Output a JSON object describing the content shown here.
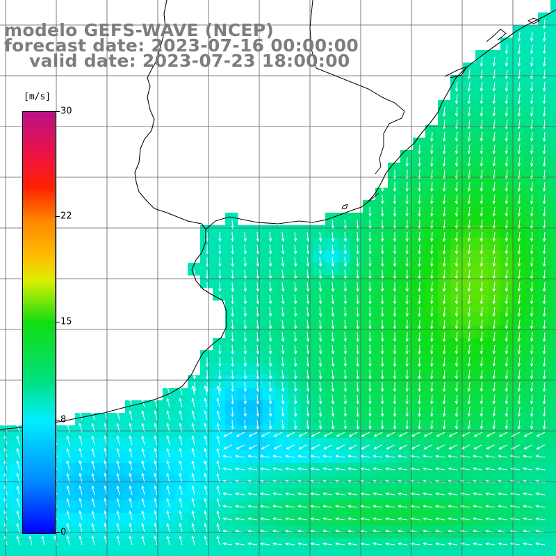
{
  "title": {
    "line1": "modelo GEFS-WAVE (NCEP)",
    "line2": "forecast date: 2023-07-16 00:00:00",
    "line3": "valid date: 2023-07-23 18:00:00"
  },
  "colorbar": {
    "unit": "[m/s]",
    "ticks": [
      "0",
      "8",
      "15",
      "22",
      "30"
    ],
    "min": 0,
    "max": 30,
    "stops": [
      {
        "value": 0,
        "color": "#0000ff"
      },
      {
        "value": 4,
        "color": "#0088ff"
      },
      {
        "value": 8,
        "color": "#00eeff"
      },
      {
        "value": 11,
        "color": "#00e080"
      },
      {
        "value": 15,
        "color": "#11dd11"
      },
      {
        "value": 18,
        "color": "#ddee00"
      },
      {
        "value": 20,
        "color": "#ffbb00"
      },
      {
        "value": 22,
        "color": "#ff8800"
      },
      {
        "value": 25,
        "color": "#ff2200"
      },
      {
        "value": 27,
        "color": "#ee1144"
      },
      {
        "value": 30,
        "color": "#bb1188"
      }
    ]
  },
  "map": {
    "field": "wind speed",
    "colors": {
      "land": "#ffffff",
      "coastline": "#000000",
      "grid": "#555555",
      "arrows": "#ffffff"
    }
  }
}
